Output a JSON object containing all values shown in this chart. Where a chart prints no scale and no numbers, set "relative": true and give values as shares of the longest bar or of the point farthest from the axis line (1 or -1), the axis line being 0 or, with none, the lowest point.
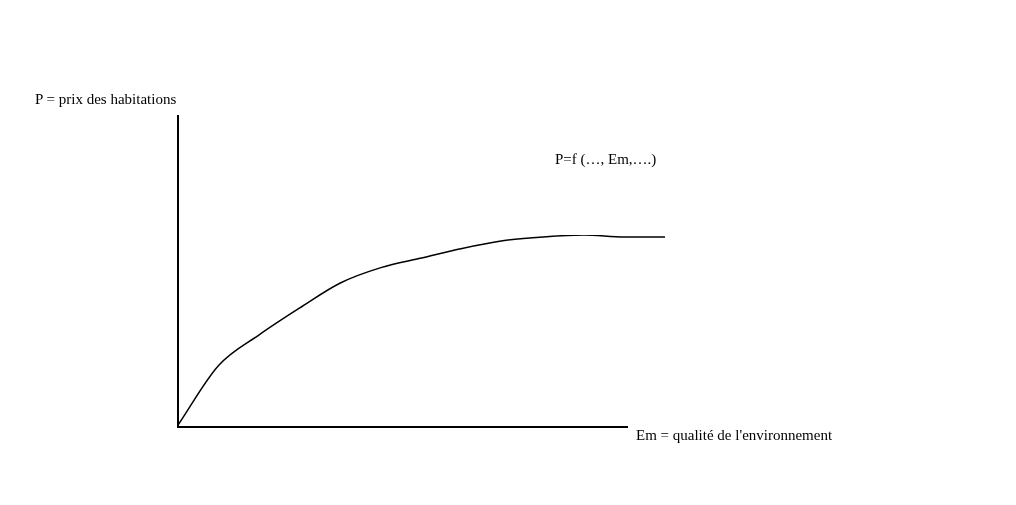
{
  "chart_data": {
    "type": "line",
    "relative": true,
    "xlabel": "Em = qualité de l'environnement",
    "annotations": [
      "P = prix des habitations",
      "P=f (…, Em,….)"
    ],
    "categories": [
      null,
      null,
      null,
      null,
      null,
      null,
      null,
      null,
      null,
      null,
      null,
      null,
      null
    ],
    "series": [
      {
        "color": "#000000",
        "values": [
          0.01,
          0.32,
          0.48,
          0.62,
          0.75,
          0.83,
          0.88,
          0.93,
          0.97,
          0.99,
          1,
          0.99,
          0.99
        ]
      }
    ],
    "marker": "none",
    "legend": false
  }
}
